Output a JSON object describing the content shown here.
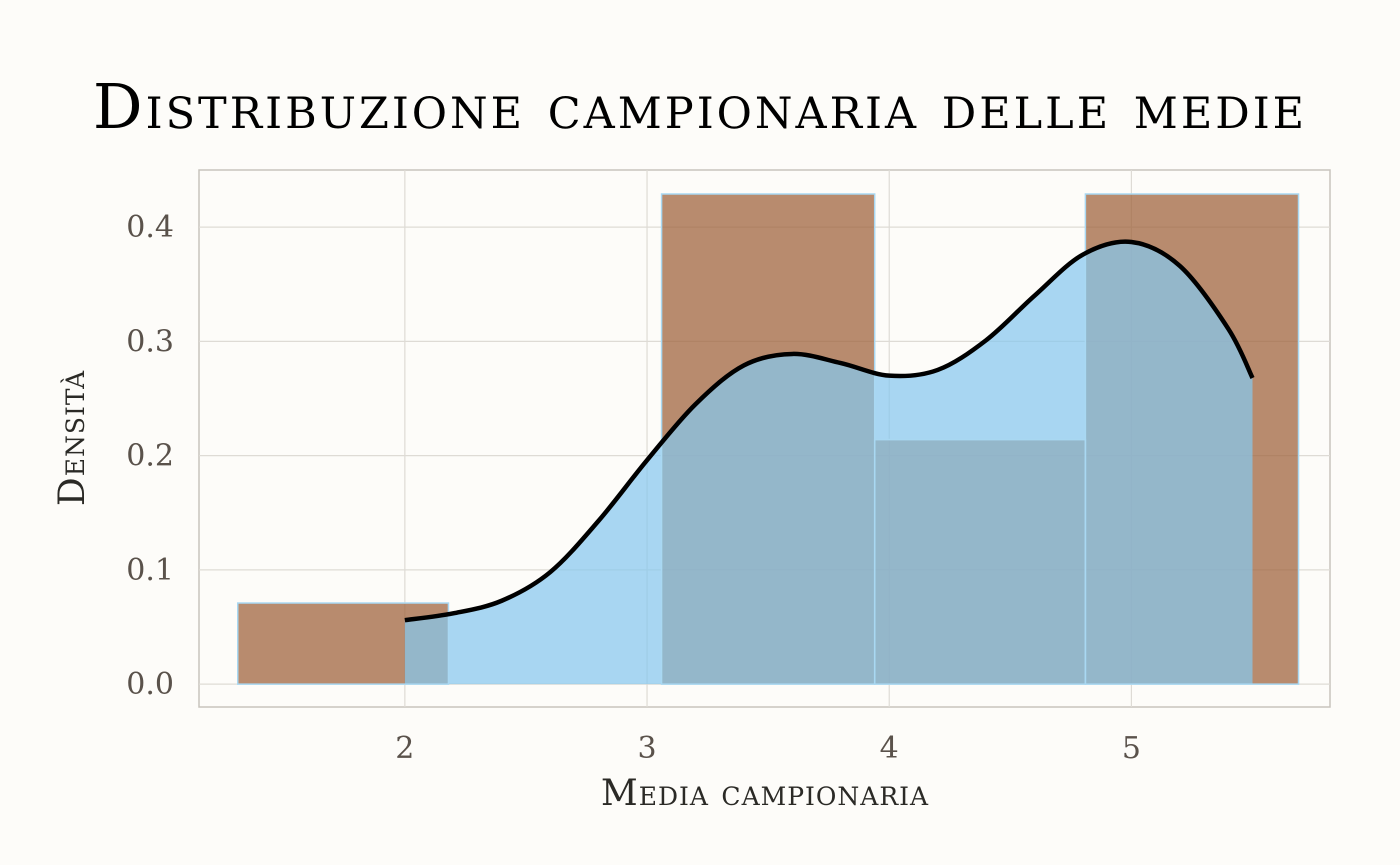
{
  "chart_data": {
    "type": "bar",
    "title": "Distribuzione campionaria delle medie",
    "xlabel": "Media campionaria",
    "ylabel": "Densità",
    "xlim": [
      1.15,
      5.82
    ],
    "ylim": [
      -0.02,
      0.45
    ],
    "x_ticks": [
      2,
      3,
      4,
      5
    ],
    "x_tick_labels": [
      "2",
      "3",
      "4",
      "5"
    ],
    "y_ticks": [
      0,
      0.1,
      0.2,
      0.3,
      0.4
    ],
    "y_tick_labels": [
      "0.0",
      "0.1",
      "0.2",
      "0.3",
      "0.4"
    ],
    "grid": true,
    "histogram": {
      "bins": [
        {
          "x0": 1.31,
          "x1": 2.18,
          "density": 0.071
        },
        {
          "x0": 2.18,
          "x1": 3.06,
          "density": 0.0
        },
        {
          "x0": 3.06,
          "x1": 3.94,
          "density": 0.429
        },
        {
          "x0": 3.94,
          "x1": 4.81,
          "density": 0.214
        },
        {
          "x0": 4.81,
          "x1": 5.69,
          "density": 0.429
        }
      ],
      "color": "#a0653f"
    },
    "density_curve": {
      "x": [
        2.0,
        2.2,
        2.4,
        2.6,
        2.8,
        3.0,
        3.2,
        3.4,
        3.6,
        3.8,
        4.0,
        4.2,
        4.4,
        4.6,
        4.8,
        5.0,
        5.2,
        5.4,
        5.5
      ],
      "y": [
        0.056,
        0.062,
        0.073,
        0.098,
        0.143,
        0.196,
        0.245,
        0.279,
        0.289,
        0.281,
        0.27,
        0.275,
        0.301,
        0.34,
        0.376,
        0.387,
        0.366,
        0.311,
        0.268
      ],
      "fill_color": "#87c8ee",
      "line_color": "#000000"
    }
  }
}
